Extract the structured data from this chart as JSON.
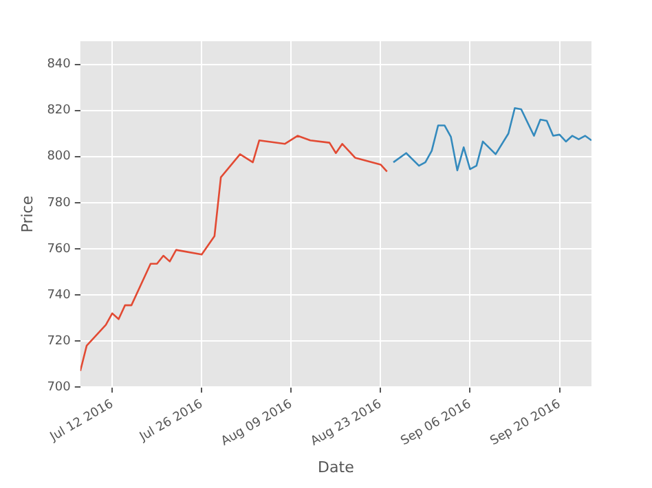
{
  "chart_data": {
    "type": "line",
    "xlabel": "Date",
    "ylabel": "Price",
    "series": [
      {
        "color": "#e24a33",
        "x": [
          "2016-07-07",
          "2016-07-08",
          "2016-07-11",
          "2016-07-12",
          "2016-07-13",
          "2016-07-14",
          "2016-07-15",
          "2016-07-18",
          "2016-07-19",
          "2016-07-20",
          "2016-07-21",
          "2016-07-22",
          "2016-07-26",
          "2016-07-28",
          "2016-07-29",
          "2016-08-01",
          "2016-08-03",
          "2016-08-04",
          "2016-08-08",
          "2016-08-10",
          "2016-08-12",
          "2016-08-15",
          "2016-08-16",
          "2016-08-17",
          "2016-08-19",
          "2016-08-23",
          "2016-08-24"
        ],
        "values": [
          707,
          718,
          727,
          732,
          729.5,
          735.5,
          735.5,
          753.5,
          753.5,
          757,
          754.5,
          759.5,
          757.5,
          765.5,
          791,
          801,
          797.5,
          807,
          805.5,
          809,
          807,
          806,
          801.5,
          805.5,
          799.5,
          796.5,
          793.5
        ]
      },
      {
        "color": "#348abd",
        "x": [
          "2016-08-25",
          "2016-08-27",
          "2016-08-29",
          "2016-08-30",
          "2016-08-31",
          "2016-09-01",
          "2016-09-02",
          "2016-09-03",
          "2016-09-04",
          "2016-09-05",
          "2016-09-06",
          "2016-09-07",
          "2016-09-08",
          "2016-09-10",
          "2016-09-12",
          "2016-09-13",
          "2016-09-14",
          "2016-09-16",
          "2016-09-17",
          "2016-09-18",
          "2016-09-19",
          "2016-09-20",
          "2016-09-21",
          "2016-09-22",
          "2016-09-23",
          "2016-09-24",
          "2016-09-25"
        ],
        "values": [
          797.5,
          801.5,
          796,
          797.5,
          802.5,
          813.5,
          813.5,
          808.5,
          794,
          804,
          794.5,
          796,
          806.5,
          801,
          810,
          821,
          820.5,
          809,
          816,
          815.5,
          809,
          809.5,
          806.5,
          809,
          807.5,
          809,
          807
        ]
      }
    ],
    "xlim": [
      "2016-07-07",
      "2016-09-25"
    ],
    "xticks": [
      {
        "value": "2016-07-12",
        "label": "Jul 12 2016"
      },
      {
        "value": "2016-07-26",
        "label": "Jul 26 2016"
      },
      {
        "value": "2016-08-09",
        "label": "Aug 09 2016"
      },
      {
        "value": "2016-08-23",
        "label": "Aug 23 2016"
      },
      {
        "value": "2016-09-06",
        "label": "Sep 06 2016"
      },
      {
        "value": "2016-09-20",
        "label": "Sep 20 2016"
      }
    ],
    "ylim": [
      700,
      850
    ],
    "yticks": [
      700,
      720,
      740,
      760,
      780,
      800,
      820,
      840
    ],
    "grid": true
  }
}
